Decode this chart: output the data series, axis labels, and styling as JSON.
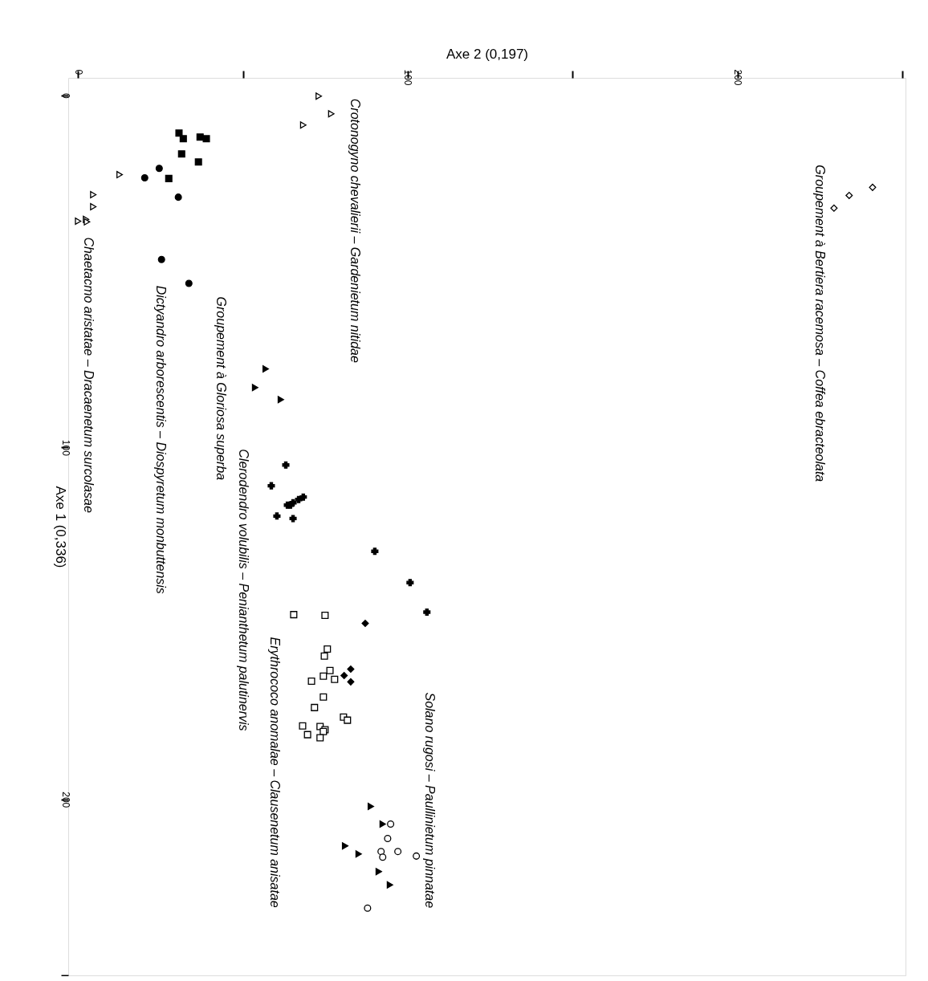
{
  "chart_data": {
    "type": "scatter",
    "xlabel": "Axe 2 (0,197)",
    "ylabel": "Axe 1 (0,336)",
    "xlim": [
      -3,
      251
    ],
    "ylim": [
      250,
      -5
    ],
    "xticks": [
      0,
      {
        "value": 50,
        "label": null
      },
      100,
      {
        "value": 150,
        "label": null
      },
      200,
      {
        "value": 250,
        "label": null
      }
    ],
    "yticks": [
      0,
      100,
      200,
      {
        "value": 250,
        "label": null
      }
    ],
    "grid": false,
    "series": [
      {
        "name": "Groupement à Bertiera racemosa – Coffea ebracteolata",
        "color": "#ffffff",
        "marker": "diamond",
        "x": [
          229.3,
          233.9,
          241.0
        ],
        "values": [
          32.0,
          28.4,
          26.1
        ]
      },
      {
        "name": "Crotonogyno chevalierii – Gardenietum nitidae",
        "color": "#ffffff",
        "marker": "triangle",
        "x": [
          73.0,
          76.8,
          68.3
        ],
        "values": [
          0.2,
          5.2,
          8.4
        ]
      },
      {
        "color": "#000000",
        "marker": "square",
        "x": [
          30.6,
          31.9,
          37.0,
          38.9,
          31.4,
          36.5,
          27.5
        ],
        "values": [
          10.7,
          12.3,
          11.8,
          12.3,
          16.6,
          18.9,
          23.6
        ]
      },
      {
        "name": "Dictyandro arborescentis – Diospyretum monbuttensis",
        "color": "#000000",
        "marker": "circle",
        "x": [
          24.6,
          20.2,
          30.4,
          25.3,
          33.6
        ],
        "values": [
          20.7,
          23.4,
          28.9,
          46.6,
          53.4
        ]
      },
      {
        "name": "Chaetacmo aristatae – Dracaenetum surcolasae",
        "color": "#ffffff",
        "marker": "triangle",
        "x": [
          12.6,
          4.6,
          4.6,
          2.4,
          2.7,
          0.0
        ],
        "values": [
          22.5,
          28.2,
          31.6,
          35.2,
          35.9,
          35.7
        ]
      },
      {
        "name": "Groupement à Gloriosa superba",
        "color": "#000000",
        "marker": "triangle",
        "x": [
          56.9,
          53.7,
          61.5
        ],
        "values": [
          77.7,
          83.0,
          86.4
        ]
      },
      {
        "name": "Clerodendro volubilis – Penianthetum palutinervis",
        "color": "#000000",
        "marker": "cross",
        "x": [
          63.0,
          58.6,
          68.3,
          66.9,
          65.2,
          64.4,
          63.5,
          60.3,
          65.2
        ],
        "values": [
          105.0,
          110.9,
          114.1,
          114.8,
          115.7,
          116.4,
          116.4,
          119.5,
          120.2
        ]
      },
      {
        "color": "#000000",
        "marker": "cross",
        "x": [
          90.0,
          100.7,
          105.8
        ],
        "values": [
          129.5,
          138.4,
          146.8
        ]
      },
      {
        "color": "#000000",
        "marker": "diamond",
        "x": [
          87.1,
          82.7,
          80.7,
          82.7
        ],
        "values": [
          150.0,
          163.0,
          164.8,
          166.6
        ]
      },
      {
        "name": "Erythrococo anomalae – Clausenetum anisatae",
        "color": "#ffffff",
        "marker": "square",
        "x": [
          65.4,
          74.9,
          75.6,
          74.7,
          76.4,
          74.4,
          77.8,
          70.8,
          74.4,
          71.7,
          80.5,
          81.7,
          68.1,
          73.4,
          74.9,
          74.4,
          69.6,
          73.4
        ],
        "values": [
          147.5,
          147.7,
          157.3,
          159.3,
          163.4,
          165.0,
          165.9,
          166.4,
          170.9,
          173.9,
          176.6,
          177.5,
          179.1,
          179.3,
          180.2,
          180.7,
          181.6,
          182.5
        ]
      },
      {
        "color": "#000000",
        "marker": "triangle",
        "x": [
          88.8,
          92.4,
          81.0,
          85.1,
          91.2,
          94.6
        ],
        "values": [
          202.0,
          207.0,
          213.2,
          215.5,
          220.5,
          224.3
        ]
      },
      {
        "name": "Solano rugosi – Paullinietum pinnatae",
        "color": "#ffffff",
        "marker": "circle",
        "x": [
          94.8,
          93.9,
          91.9,
          92.4,
          97.0,
          102.6,
          87.8
        ],
        "values": [
          207.0,
          211.1,
          214.8,
          216.4,
          214.8,
          216.1,
          230.9
        ]
      }
    ]
  }
}
